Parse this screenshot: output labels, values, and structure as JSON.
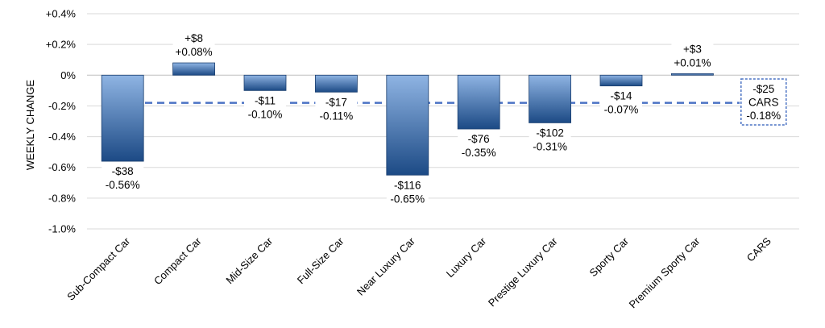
{
  "chart_data": {
    "type": "bar",
    "title": "",
    "xlabel": "",
    "ylabel": "WEEKLY CHANGE",
    "ylim": [
      -1.0,
      0.4
    ],
    "yticks": [
      0.4,
      0.2,
      0.0,
      -0.2,
      -0.4,
      -0.6,
      -0.8,
      -1.0
    ],
    "ytick_labels": [
      "+0.4%",
      "+0.2%",
      "0%",
      "-0.2%",
      "-0.4%",
      "-0.6%",
      "-0.8%",
      "-1.0%"
    ],
    "grid": true,
    "categories": [
      "Sub-Compact Car",
      "Compact Car",
      "Mid-Size Car",
      "Full-Size Car",
      "Near Luxury Car",
      "Luxury Car",
      "Prestige Luxury Car",
      "Sporty Car",
      "Premium Sporty Car",
      "CARS"
    ],
    "values": [
      -0.56,
      0.08,
      -0.1,
      -0.11,
      -0.65,
      -0.35,
      -0.31,
      -0.07,
      0.01,
      null
    ],
    "dollar_labels": [
      "-$38",
      "+$8",
      "-$11",
      "-$17",
      "-$116",
      "-$76",
      "-$102",
      "-$14",
      "+$3"
    ],
    "percent_labels": [
      "-0.56%",
      "+0.08%",
      "-0.10%",
      "-0.11%",
      "-0.65%",
      "-0.35%",
      "-0.31%",
      "-0.07%",
      "+0.01%"
    ],
    "reference_line": {
      "name": "CARS",
      "value": -0.18,
      "labels": [
        "-$25",
        "CARS",
        "-0.18%"
      ],
      "color": "#4a72c4",
      "style": "dashed"
    },
    "colors": {
      "bar_light": "#8fb4e3",
      "bar_dark": "#1c4a85",
      "grid": "#d9d9d9"
    }
  }
}
